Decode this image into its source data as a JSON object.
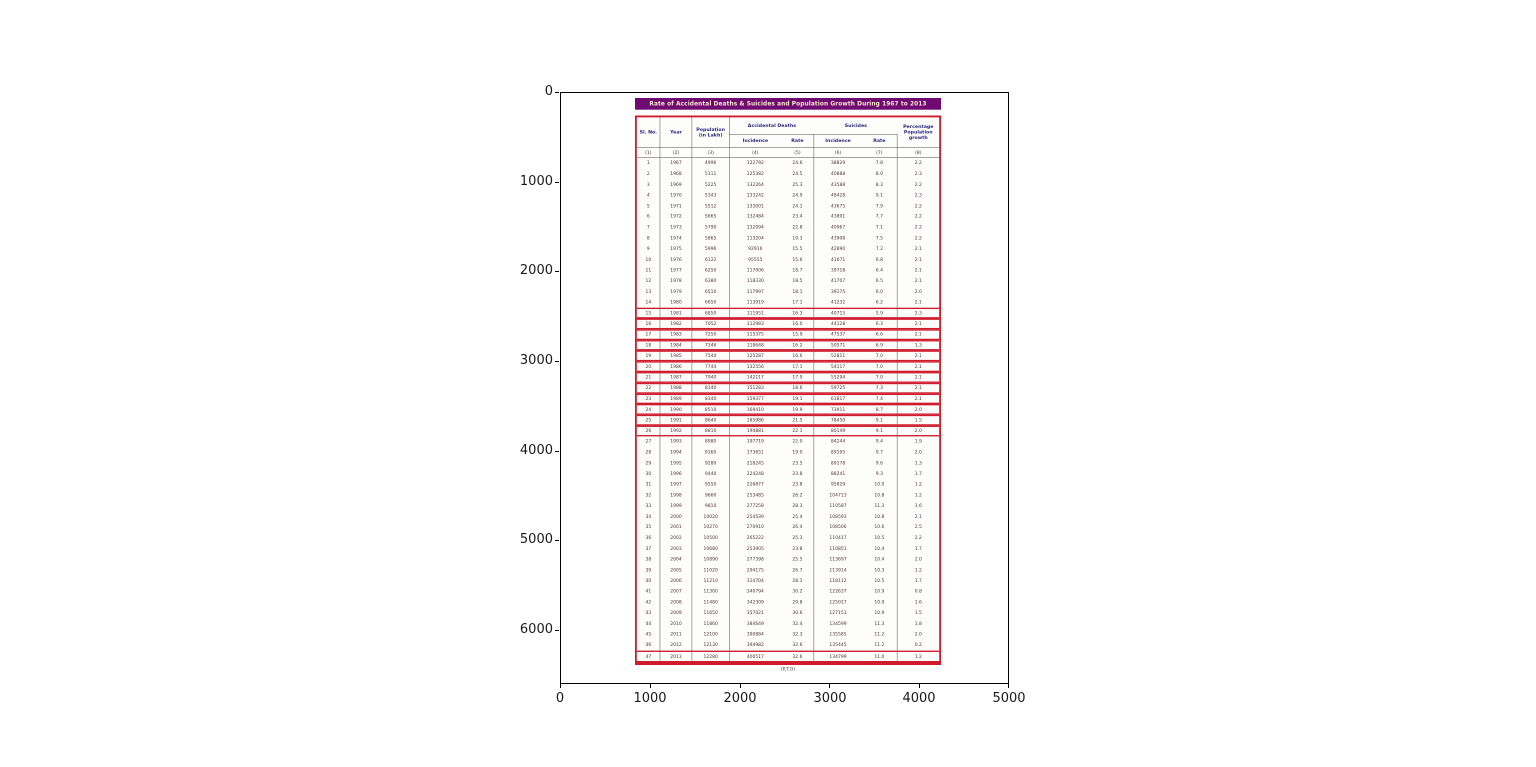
{
  "figure": {
    "yticks": [
      "0",
      "1000",
      "2000",
      "3000",
      "4000",
      "5000",
      "6000"
    ],
    "xticks": [
      "0",
      "1000",
      "2000",
      "3000",
      "4000",
      "5000"
    ]
  },
  "colors": {
    "title_bar": "#6e0a72",
    "title_text": "#f7ecc9",
    "table_border": "#cf1b2b",
    "header_text": "#26267e",
    "body_text": "#50303a"
  },
  "chart_data": {
    "type": "table",
    "title": "Rate of Accidental Deaths & Suicides and Population Growth During 1967 to 2013",
    "header": {
      "sl": "Sl. No.",
      "year": "Year",
      "population": "Population (in Lakh)",
      "accidental_deaths": "Accidental Deaths",
      "suicides": "Suicides",
      "incidence": "Incidence",
      "rate": "Rate",
      "pct_growth": "Percentage Population growth"
    },
    "column_numbers": [
      "(1)",
      "(2)",
      "(3)",
      "(4)",
      "(5)",
      "(6)",
      "(7)",
      "(8)"
    ],
    "rows": [
      [
        "1",
        "1967",
        "4996",
        "122792",
        "24.6",
        "38829",
        "7.8",
        "2.2"
      ],
      [
        "2",
        "1968",
        "5111",
        "125382",
        "24.5",
        "40888",
        "8.0",
        "2.3"
      ],
      [
        "3",
        "1969",
        "5225",
        "132264",
        "25.3",
        "43588",
        "8.3",
        "2.2"
      ],
      [
        "4",
        "1970",
        "5343",
        "133242",
        "24.9",
        "48428",
        "9.1",
        "2.3"
      ],
      [
        "5",
        "1971",
        "5512",
        "133001",
        "24.1",
        "43675",
        "7.9",
        "2.2"
      ],
      [
        "6",
        "1972",
        "5665",
        "132484",
        "23.4",
        "43891",
        "7.7",
        "2.2"
      ],
      [
        "7",
        "1973",
        "5790",
        "132094",
        "22.8",
        "40967",
        "7.1",
        "2.2"
      ],
      [
        "8",
        "1974",
        "5865",
        "113204",
        "19.3",
        "43908",
        "7.5",
        "2.2"
      ],
      [
        "9",
        "1975",
        "5996",
        "92916",
        "15.5",
        "42890",
        "7.2",
        "2.1"
      ],
      [
        "10",
        "1976",
        "6122",
        "95555",
        "15.6",
        "41671",
        "6.8",
        "2.1"
      ],
      [
        "11",
        "1977",
        "6250",
        "117006",
        "18.7",
        "39718",
        "6.4",
        "2.1"
      ],
      [
        "12",
        "1978",
        "6380",
        "118330",
        "18.5",
        "41707",
        "6.5",
        "2.1"
      ],
      [
        "13",
        "1979",
        "6510",
        "117997",
        "18.1",
        "39175",
        "6.0",
        "2.0"
      ],
      [
        "14",
        "1980",
        "6650",
        "113919",
        "17.1",
        "41232",
        "6.2",
        "2.1"
      ],
      [
        "15",
        "1981",
        "6850",
        "111951",
        "16.3",
        "40715",
        "5.9",
        "2.3"
      ],
      [
        "16",
        "1982",
        "7052",
        "112983",
        "16.0",
        "44128",
        "6.3",
        "2.1"
      ],
      [
        "17",
        "1983",
        "7250",
        "115375",
        "15.9",
        "47537",
        "6.6",
        "2.1"
      ],
      [
        "18",
        "1984",
        "7346",
        "118648",
        "16.2",
        "50571",
        "6.9",
        "1.3"
      ],
      [
        "19",
        "1985",
        "7544",
        "125287",
        "16.6",
        "52811",
        "7.0",
        "2.1"
      ],
      [
        "20",
        "1986",
        "7744",
        "132556",
        "17.1",
        "54117",
        "7.0",
        "2.1"
      ],
      [
        "21",
        "1987",
        "7940",
        "142117",
        "17.9",
        "55294",
        "7.0",
        "2.1"
      ],
      [
        "22",
        "1988",
        "8140",
        "151283",
        "18.6",
        "59725",
        "7.3",
        "2.1"
      ],
      [
        "23",
        "1989",
        "8340",
        "159377",
        "19.1",
        "61817",
        "7.4",
        "2.1"
      ],
      [
        "24",
        "1990",
        "8510",
        "169410",
        "19.9",
        "73911",
        "8.7",
        "2.0"
      ],
      [
        "25",
        "1991",
        "8640",
        "185986",
        "21.5",
        "78450",
        "9.1",
        "1.5"
      ],
      [
        "26",
        "1992",
        "8810",
        "194881",
        "22.1",
        "80149",
        "9.1",
        "2.0"
      ],
      [
        "27",
        "1993",
        "8980",
        "197719",
        "22.0",
        "84244",
        "9.4",
        "1.9"
      ],
      [
        "28",
        "1994",
        "9160",
        "173651",
        "19.0",
        "89195",
        "9.7",
        "2.0"
      ],
      [
        "29",
        "1995",
        "9280",
        "218245",
        "23.5",
        "89178",
        "9.6",
        "1.3"
      ],
      [
        "30",
        "1996",
        "9440",
        "224248",
        "23.8",
        "88241",
        "9.3",
        "1.7"
      ],
      [
        "31",
        "1997",
        "9550",
        "226877",
        "23.8",
        "95829",
        "10.0",
        "1.2"
      ],
      [
        "32",
        "1998",
        "9660",
        "253485",
        "26.2",
        "104713",
        "10.8",
        "1.2"
      ],
      [
        "33",
        "1999",
        "9810",
        "277258",
        "28.3",
        "110587",
        "11.3",
        "1.6"
      ],
      [
        "34",
        "2000",
        "10020",
        "254539",
        "25.4",
        "108593",
        "10.8",
        "2.1"
      ],
      [
        "35",
        "2001",
        "10270",
        "270910",
        "26.4",
        "108506",
        "10.6",
        "2.5"
      ],
      [
        "36",
        "2002",
        "10500",
        "265222",
        "25.3",
        "110417",
        "10.5",
        "2.2"
      ],
      [
        "37",
        "2003",
        "10680",
        "253905",
        "23.8",
        "110851",
        "10.4",
        "1.7"
      ],
      [
        "38",
        "2004",
        "10890",
        "277398",
        "25.5",
        "113697",
        "10.4",
        "2.0"
      ],
      [
        "39",
        "2005",
        "11020",
        "294175",
        "26.7",
        "113914",
        "10.3",
        "1.2"
      ],
      [
        "40",
        "2006",
        "11210",
        "314704",
        "28.1",
        "118112",
        "10.5",
        "1.7"
      ],
      [
        "41",
        "2007",
        "11300",
        "340794",
        "30.2",
        "122637",
        "10.9",
        "0.8"
      ],
      [
        "42",
        "2008",
        "11480",
        "342309",
        "29.8",
        "125017",
        "10.9",
        "1.6"
      ],
      [
        "43",
        "2009",
        "11650",
        "357021",
        "30.6",
        "127151",
        "10.9",
        "1.5"
      ],
      [
        "44",
        "2010",
        "11860",
        "384649",
        "32.4",
        "134599",
        "11.3",
        "1.8"
      ],
      [
        "45",
        "2011",
        "12100",
        "390884",
        "32.3",
        "135585",
        "11.2",
        "2.0"
      ],
      [
        "46",
        "2012",
        "12130",
        "394982",
        "32.6",
        "135445",
        "11.2",
        "0.2"
      ],
      [
        "47",
        "2013",
        "12280",
        "400517",
        "32.6",
        "134799",
        "11.0",
        "1.2"
      ]
    ],
    "highlight_sl": [
      15,
      16,
      17,
      18,
      19,
      20,
      21,
      22,
      23,
      24,
      25,
      26
    ],
    "footer": "(P.T.O)"
  }
}
